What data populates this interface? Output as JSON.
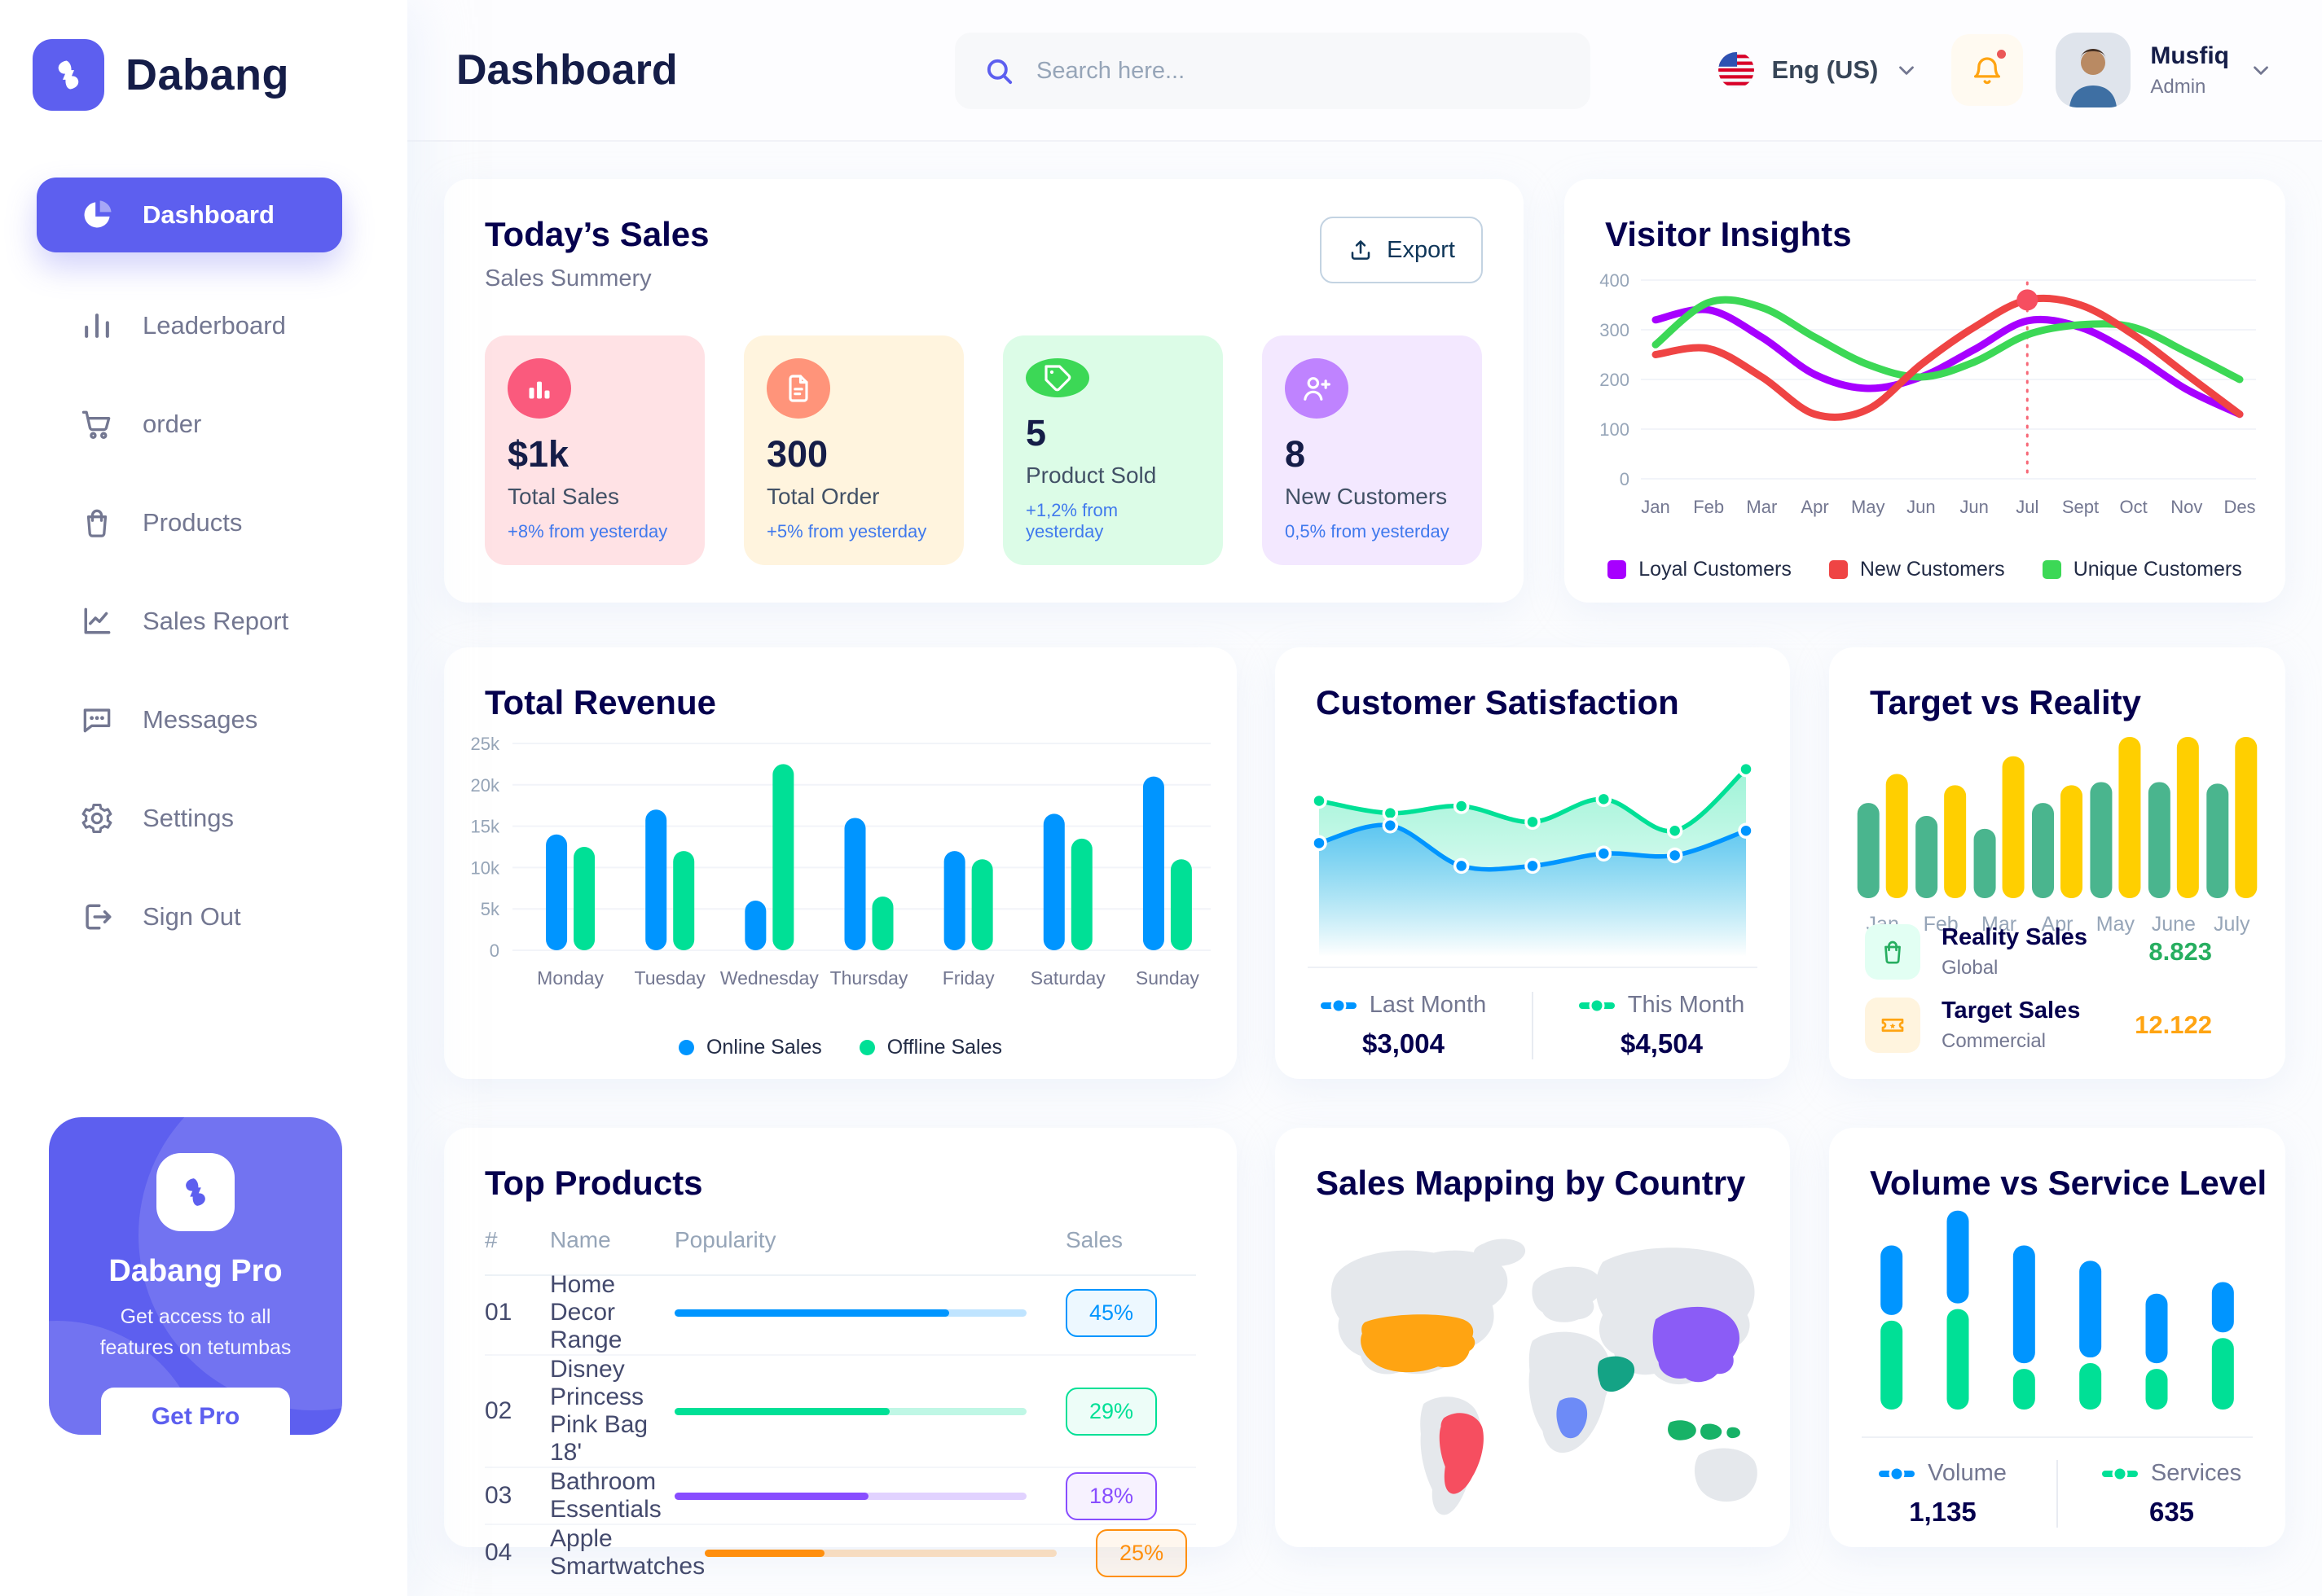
{
  "app": {
    "brand": "Dabang"
  },
  "header": {
    "title": "Dashboard",
    "search_placeholder": "Search here...",
    "language": "Eng (US)",
    "user_name": "Musfiq",
    "user_role": "Admin"
  },
  "sidebar": {
    "items": [
      {
        "label": "Dashboard",
        "icon": "pie-chart-icon",
        "active": true
      },
      {
        "label": "Leaderboard",
        "icon": "leaderboard-icon",
        "active": false
      },
      {
        "label": "order",
        "icon": "cart-icon",
        "active": false
      },
      {
        "label": "Products",
        "icon": "bag-icon",
        "active": false
      },
      {
        "label": "Sales Report",
        "icon": "line-chart-icon",
        "active": false
      },
      {
        "label": "Messages",
        "icon": "message-icon",
        "active": false
      },
      {
        "label": "Settings",
        "icon": "gear-icon",
        "active": false
      },
      {
        "label": "Sign Out",
        "icon": "sign-out-icon",
        "active": false
      }
    ],
    "pro": {
      "title": "Dabang Pro",
      "text": "Get access to all features on tetumbas",
      "button": "Get Pro"
    }
  },
  "today_sales": {
    "title": "Today’s Sales",
    "subtitle": "Sales Summery",
    "export_label": "Export",
    "cards": [
      {
        "value": "$1k",
        "label": "Total Sales",
        "note": "+8% from yesterday",
        "bg": "#FFE2E5",
        "icon_bg": "#FA5A7D",
        "icon": "bar-chart-icon"
      },
      {
        "value": "300",
        "label": "Total Order",
        "note": "+5% from yesterday",
        "bg": "#FFF4DE",
        "icon_bg": "#FF947A",
        "icon": "order-file-icon"
      },
      {
        "value": "5",
        "label": "Product Sold",
        "note": "+1,2% from yesterday",
        "bg": "#DCFCE7",
        "icon_bg": "#3CD856",
        "icon": "tag-icon"
      },
      {
        "value": "8",
        "label": "New Customers",
        "note": "0,5% from yesterday",
        "bg": "#F3E8FF",
        "icon_bg": "#BF83FF",
        "icon": "user-plus-icon"
      }
    ]
  },
  "top_products": {
    "title": "Top Products",
    "headers": [
      "#",
      "Name",
      "Popularity",
      "Sales"
    ],
    "rows": [
      {
        "num": "01",
        "name": "Home Decor Range",
        "popularity": 78,
        "sales": "45%",
        "color": "#0095FF"
      },
      {
        "num": "02",
        "name": "Disney Princess Pink Bag 18'",
        "popularity": 61,
        "sales": "29%",
        "color": "#00E096"
      },
      {
        "num": "03",
        "name": "Bathroom Essentials",
        "popularity": 55,
        "sales": "18%",
        "color": "#884DFF"
      },
      {
        "num": "04",
        "name": "Apple Smartwatches",
        "popularity": 34,
        "sales": "25%",
        "color": "#FF8F0D"
      }
    ]
  },
  "sales_mapping": {
    "title": "Sales Mapping by Country",
    "countries": [
      {
        "name": "United States",
        "color": "#FFA412"
      },
      {
        "name": "Brazil",
        "color": "#F64E60"
      },
      {
        "name": "Saudi Arabia",
        "color": "#14A385"
      },
      {
        "name": "DR Congo",
        "color": "#6D8BF7"
      },
      {
        "name": "China",
        "color": "#8B5CF6"
      },
      {
        "name": "Indonesia",
        "color": "#17B267"
      }
    ]
  },
  "target_legend": {
    "rows": [
      {
        "label": "Reality Sales",
        "sub": "Global",
        "value": "8.823",
        "icon": "bag-icon",
        "tile_bg": "#E2FFF3",
        "accent": "#27AE60"
      },
      {
        "label": "Target Sales",
        "sub": "Commercial",
        "value": "12.122",
        "icon": "ticket-icon",
        "tile_bg": "#FFF4DE",
        "accent": "#FFA412"
      }
    ]
  },
  "chart_data": [
    {
      "id": "visitor_insights",
      "type": "line",
      "title": "Visitor Insights",
      "x": [
        "Jan",
        "Feb",
        "Mar",
        "Apr",
        "May",
        "Jun",
        "Jun",
        "Jul",
        "Sept",
        "Oct",
        "Nov",
        "Des"
      ],
      "ylim": [
        0,
        400
      ],
      "yticks": [
        0,
        100,
        200,
        300,
        400
      ],
      "grid": true,
      "legend_position": "bottom",
      "series": [
        {
          "name": "Loyal Customers",
          "color": "#A700FF",
          "values": [
            320,
            340,
            285,
            210,
            182,
            205,
            260,
            318,
            305,
            250,
            180,
            130
          ]
        },
        {
          "name": "New Customers",
          "color": "#EF4444",
          "values": [
            250,
            262,
            205,
            130,
            140,
            230,
            305,
            360,
            350,
            290,
            210,
            130
          ]
        },
        {
          "name": "Unique Customers",
          "color": "#3CD856",
          "values": [
            270,
            355,
            345,
            285,
            230,
            205,
            235,
            290,
            310,
            305,
            255,
            200
          ]
        }
      ],
      "annotation": {
        "series": "New Customers",
        "x_index": 7,
        "value": 360
      }
    },
    {
      "id": "total_revenue",
      "type": "bar",
      "title": "Total Revenue",
      "categories": [
        "Monday",
        "Tuesday",
        "Wednesday",
        "Thursday",
        "Friday",
        "Saturday",
        "Sunday"
      ],
      "ylim": [
        0,
        25000
      ],
      "yticks": [
        0,
        5000,
        10000,
        15000,
        20000,
        25000
      ],
      "ytick_labels": [
        "0",
        "5k",
        "10k",
        "15k",
        "20k",
        "25k"
      ],
      "grid": true,
      "legend_position": "bottom",
      "series": [
        {
          "name": "Online Sales",
          "color": "#0095FF",
          "values": [
            14000,
            17000,
            6000,
            16000,
            12000,
            16500,
            21000
          ]
        },
        {
          "name": "Offline Sales",
          "color": "#00E096",
          "values": [
            12500,
            12000,
            22500,
            6500,
            11000,
            13500,
            11000
          ]
        }
      ]
    },
    {
      "id": "customer_satisfaction",
      "type": "area",
      "title": "Customer Satisfaction",
      "ylim": [
        0,
        100
      ],
      "legend_position": "bottom",
      "series": [
        {
          "name": "Last Month",
          "total": "$3,004",
          "color": "#0095FF",
          "values": [
            48,
            58,
            35,
            35,
            42,
            41,
            55
          ]
        },
        {
          "name": "This Month",
          "total": "$4,504",
          "color": "#00E096",
          "values": [
            72,
            65,
            69,
            60,
            73,
            55,
            90
          ]
        }
      ]
    },
    {
      "id": "target_vs_reality",
      "type": "bar",
      "title": "Target vs Reality",
      "categories": [
        "Jan",
        "Feb",
        "Mar",
        "Apr",
        "May",
        "June",
        "July"
      ],
      "ylim": [
        0,
        100
      ],
      "legend_position": "bottom",
      "series": [
        {
          "name": "Reality Sales",
          "color": "#4AB58E",
          "values": [
            59,
            51,
            43,
            59,
            72,
            72,
            71
          ]
        },
        {
          "name": "Target Sales",
          "color": "#FFCF00",
          "values": [
            77,
            70,
            88,
            70,
            100,
            100,
            100
          ]
        }
      ]
    },
    {
      "id": "volume_service",
      "type": "stacked-bar",
      "title": "Volume vs Service Level",
      "ylim": [
        0,
        100
      ],
      "legend_position": "bottom",
      "series": [
        {
          "name": "Volume",
          "total": "1,135",
          "color": "#0095FF",
          "values": [
            36,
            48,
            61,
            50,
            36,
            26
          ]
        },
        {
          "name": "Services",
          "total": "635",
          "color": "#00E096",
          "values": [
            46,
            52,
            21,
            24,
            21,
            37
          ]
        }
      ]
    }
  ]
}
